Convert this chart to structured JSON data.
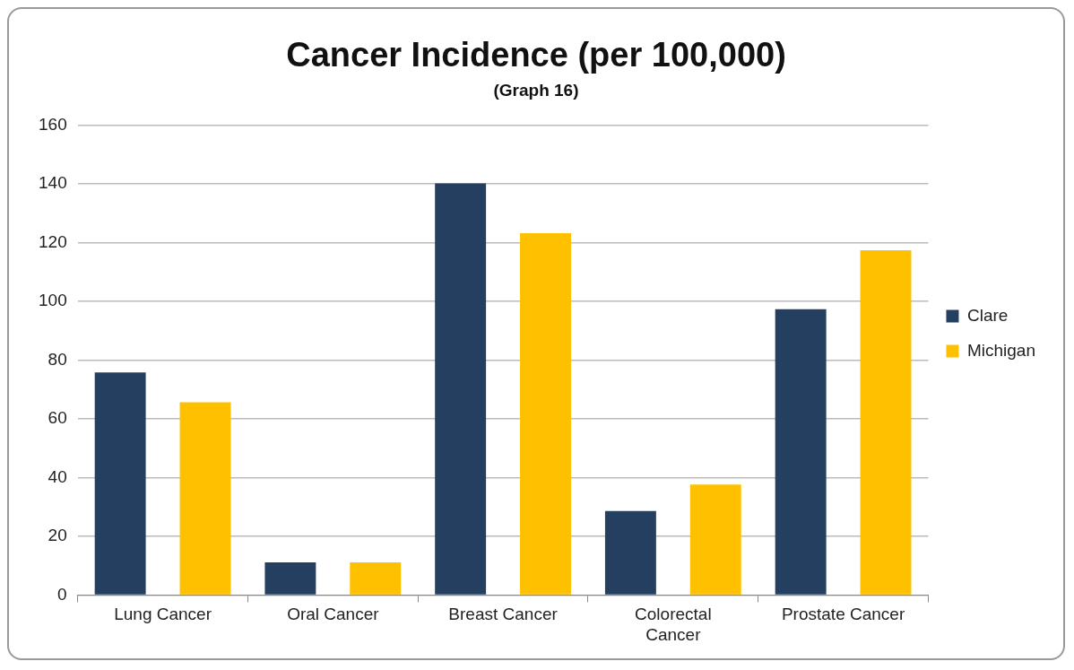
{
  "chart_data": {
    "type": "bar",
    "title": "Cancer Incidence (per 100,000)",
    "subtitle": "(Graph 16)",
    "categories": [
      "Lung Cancer",
      "Oral Cancer",
      "Breast Cancer",
      "Colorectal Cancer",
      "Prostate Cancer"
    ],
    "series": [
      {
        "name": "Clare",
        "color": "#253f60",
        "values": [
          75.8,
          11.1,
          140.1,
          28.6,
          97.3
        ]
      },
      {
        "name": "Michigan",
        "color": "#ffc000",
        "values": [
          65.6,
          11.1,
          123.2,
          37.6,
          117.4
        ]
      }
    ],
    "ylim": [
      0,
      160
    ],
    "yticks": [
      0,
      20,
      40,
      60,
      80,
      100,
      120,
      140,
      160
    ],
    "grid": "y",
    "legend": "right"
  }
}
